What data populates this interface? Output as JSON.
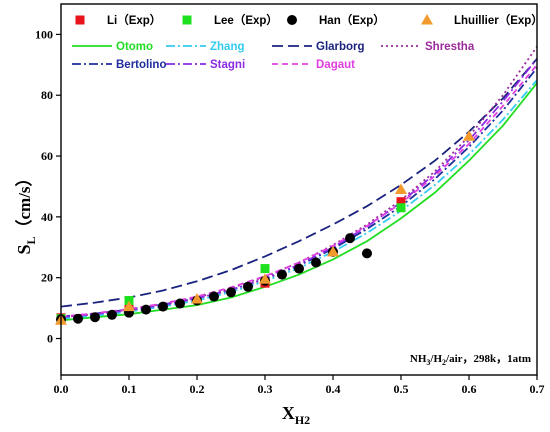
{
  "chart_data": {
    "type": "line",
    "xlabel": {
      "main": "X",
      "sub": "H2"
    },
    "ylabel": {
      "main": "S",
      "sub": "L",
      "unit": "（cm/s）"
    },
    "annotation": {
      "part1": "NH",
      "sub1": "3",
      "part2": "/H",
      "sub2": "2",
      "part3": "/air，298k，1atm"
    },
    "xlim": [
      0.0,
      0.7
    ],
    "ylim": [
      -12,
      110
    ],
    "xticks": [
      0.0,
      0.1,
      0.2,
      0.3,
      0.4,
      0.5,
      0.6,
      0.7
    ],
    "xtick_labels": [
      "0.0",
      "0.1",
      "0.2",
      "0.3",
      "0.4",
      "0.5",
      "0.6",
      "0.7"
    ],
    "yticks": [
      0,
      20,
      40,
      60,
      80,
      100
    ],
    "ytick_labels": [
      "0",
      "20",
      "40",
      "60",
      "80",
      "100"
    ],
    "grid": false,
    "legend_position": "top",
    "experiments": [
      {
        "name": "Li（Exp）",
        "marker": "square",
        "color": "#e8141b",
        "x": [
          0.0,
          0.1,
          0.3,
          0.5
        ],
        "y": [
          6.8,
          10.5,
          18.2,
          45.0
        ]
      },
      {
        "name": "Lee（Exp）",
        "marker": "square",
        "color": "#1ee01e",
        "x": [
          0.0,
          0.1,
          0.3,
          0.5
        ],
        "y": [
          6.5,
          12.5,
          23.0,
          43.0
        ]
      },
      {
        "name": "Han（Exp）",
        "marker": "circle",
        "color": "#000000",
        "x": [
          0.0,
          0.025,
          0.05,
          0.075,
          0.1,
          0.125,
          0.15,
          0.175,
          0.2,
          0.225,
          0.25,
          0.275,
          0.3,
          0.325,
          0.35,
          0.375,
          0.4,
          0.425,
          0.45
        ],
        "y": [
          6.3,
          6.5,
          7.0,
          7.8,
          8.5,
          9.5,
          10.5,
          11.5,
          12.5,
          13.8,
          15.2,
          17.0,
          19.0,
          21.0,
          23.0,
          25.0,
          28.5,
          33.0,
          28.0
        ]
      },
      {
        "name": "Lhuillier（Exp）",
        "marker": "triangle",
        "color": "#f29a2e",
        "x": [
          0.0,
          0.1,
          0.2,
          0.3,
          0.4,
          0.5,
          0.6
        ],
        "y": [
          6.0,
          10.5,
          13.0,
          19.5,
          28.5,
          49.0,
          66.5
        ]
      }
    ],
    "models": [
      {
        "name": "Otomo",
        "color": "#22dd22",
        "dash": "solid",
        "x": [
          0.0,
          0.05,
          0.1,
          0.15,
          0.2,
          0.25,
          0.3,
          0.35,
          0.4,
          0.45,
          0.5,
          0.55,
          0.6,
          0.65,
          0.7
        ],
        "y": [
          6.0,
          7.0,
          8.0,
          9.5,
          11.0,
          13.5,
          17.0,
          21.0,
          26.0,
          32.0,
          39.5,
          48.0,
          58.5,
          70.0,
          84.0
        ]
      },
      {
        "name": "Zhang",
        "color": "#33ccee",
        "dash": "dashdot",
        "x": [
          0.0,
          0.05,
          0.1,
          0.15,
          0.2,
          0.25,
          0.3,
          0.35,
          0.4,
          0.45,
          0.5,
          0.55,
          0.6,
          0.65,
          0.7
        ],
        "y": [
          6.5,
          7.5,
          8.8,
          10.5,
          12.5,
          15.3,
          18.8,
          23.2,
          28.5,
          34.7,
          42.0,
          50.5,
          60.5,
          72.0,
          85.0
        ]
      },
      {
        "name": "Glarborg",
        "color": "#1a237e",
        "dash": "longdash",
        "x": [
          0.0,
          0.05,
          0.1,
          0.15,
          0.2,
          0.25,
          0.3,
          0.35,
          0.4,
          0.45,
          0.5,
          0.55,
          0.6,
          0.65,
          0.7
        ],
        "y": [
          10.5,
          11.8,
          13.5,
          15.8,
          18.8,
          22.5,
          27.0,
          32.0,
          37.5,
          43.5,
          50.5,
          58.5,
          68.0,
          79.0,
          92.0
        ]
      },
      {
        "name": "Shrestha",
        "color": "#9b2a9b",
        "dash": "dot",
        "x": [
          0.0,
          0.05,
          0.1,
          0.15,
          0.2,
          0.25,
          0.3,
          0.35,
          0.4,
          0.45,
          0.5,
          0.55,
          0.6,
          0.65,
          0.7
        ],
        "y": [
          7.0,
          8.0,
          9.5,
          11.3,
          13.5,
          16.5,
          20.3,
          25.0,
          30.7,
          37.5,
          45.5,
          55.0,
          66.5,
          80.0,
          96.0
        ]
      },
      {
        "name": "Bertolino",
        "color": "#1f2d9c",
        "dash": "dashdot",
        "x": [
          0.0,
          0.05,
          0.1,
          0.15,
          0.2,
          0.25,
          0.3,
          0.35,
          0.4,
          0.45,
          0.5,
          0.55,
          0.6,
          0.65,
          0.7
        ],
        "y": [
          7.2,
          8.2,
          9.5,
          11.2,
          13.2,
          16.0,
          19.5,
          24.0,
          29.5,
          36.0,
          43.5,
          52.5,
          63.0,
          75.0,
          89.0
        ]
      },
      {
        "name": "Stagni",
        "color": "#8a2be2",
        "dash": "dashdot",
        "x": [
          0.0,
          0.05,
          0.1,
          0.15,
          0.2,
          0.25,
          0.3,
          0.35,
          0.4,
          0.45,
          0.5,
          0.55,
          0.6,
          0.65,
          0.7
        ],
        "y": [
          7.0,
          8.0,
          9.3,
          11.0,
          13.2,
          16.0,
          19.7,
          24.3,
          30.0,
          36.8,
          44.8,
          54.2,
          65.2,
          78.0,
          92.0
        ]
      },
      {
        "name": "Dagaut",
        "color": "#e040e0",
        "dash": "dash",
        "x": [
          0.0,
          0.05,
          0.1,
          0.15,
          0.2,
          0.25,
          0.3,
          0.35,
          0.4,
          0.45,
          0.5,
          0.55,
          0.6,
          0.65,
          0.7
        ],
        "y": [
          7.2,
          8.3,
          9.7,
          11.5,
          13.8,
          16.8,
          20.5,
          25.0,
          30.5,
          37.0,
          44.5,
          53.5,
          64.0,
          76.5,
          90.0
        ]
      }
    ]
  }
}
